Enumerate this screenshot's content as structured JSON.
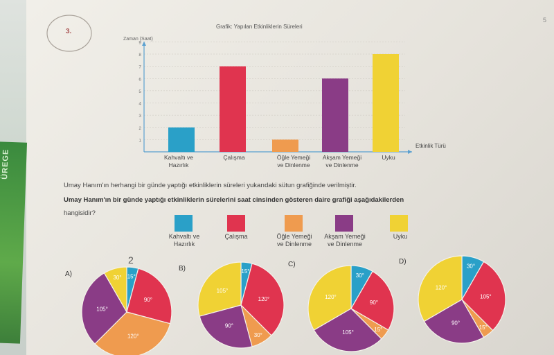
{
  "question_number": "3.",
  "page_number": "5",
  "side_sticker_text": "ÜREGE",
  "bar_chart": {
    "title": "Grafik: Yapılan Etkinliklerin Süreleri",
    "y_axis_title": "Zaman (Saat)",
    "x_axis_title": "Etkinlik Türü",
    "y_ticks": [
      "1",
      "2",
      "3",
      "4",
      "5",
      "6",
      "7",
      "8",
      "9"
    ]
  },
  "categories": [
    {
      "label_line1": "Kahvaltı ve",
      "label_line2": "Hazırlık",
      "color": "#2aa0c8"
    },
    {
      "label_line1": "Çalışma",
      "label_line2": "",
      "color": "#e0344f"
    },
    {
      "label_line1": "Öğle Yemeği",
      "label_line2": "ve Dinlenme",
      "color": "#ef9b4f"
    },
    {
      "label_line1": "Akşam Yemeği",
      "label_line2": "ve Dinlenme",
      "color": "#8a3c86"
    },
    {
      "label_line1": "Uyku",
      "label_line2": "",
      "color": "#f0d234"
    }
  ],
  "question": {
    "line1": "Umay Hanım'ın herhangi bir günde yaptığı etkinliklerin süreleri yukarıdaki sütun grafiğinde verilmiştir.",
    "line2": "Umay Hanım'ın bir günde yaptığı etkinliklerin sürelerini saat cinsinden gösteren daire grafiği aşağıdakilerden",
    "line3": "hangisidir?"
  },
  "options": [
    {
      "letter": "A)",
      "annotation": "2",
      "slices": [
        {
          "cat": 0,
          "deg": 15,
          "label": "15°"
        },
        {
          "cat": 1,
          "deg": 90,
          "label": "90°"
        },
        {
          "cat": 2,
          "deg": 120,
          "label": "120°"
        },
        {
          "cat": 3,
          "deg": 105,
          "label": "105°"
        },
        {
          "cat": 4,
          "deg": 30,
          "label": "30°"
        }
      ]
    },
    {
      "letter": "B)",
      "slices": [
        {
          "cat": 0,
          "deg": 15,
          "label": "15°"
        },
        {
          "cat": 1,
          "deg": 120,
          "label": "120°"
        },
        {
          "cat": 2,
          "deg": 30,
          "label": "30°"
        },
        {
          "cat": 3,
          "deg": 90,
          "label": "90°"
        },
        {
          "cat": 4,
          "deg": 105,
          "label": "105°"
        }
      ]
    },
    {
      "letter": "C)",
      "slices": [
        {
          "cat": 0,
          "deg": 30,
          "label": "30°"
        },
        {
          "cat": 1,
          "deg": 90,
          "label": "90°"
        },
        {
          "cat": 2,
          "deg": 15,
          "label": "15°"
        },
        {
          "cat": 3,
          "deg": 105,
          "label": "105°"
        },
        {
          "cat": 4,
          "deg": 120,
          "label": "120°"
        }
      ]
    },
    {
      "letter": "D)",
      "slices": [
        {
          "cat": 0,
          "deg": 30,
          "label": "30°"
        },
        {
          "cat": 1,
          "deg": 105,
          "label": "105°"
        },
        {
          "cat": 2,
          "deg": 15,
          "label": "15°"
        },
        {
          "cat": 3,
          "deg": 90,
          "label": "90°"
        },
        {
          "cat": 4,
          "deg": 120,
          "label": "120°"
        }
      ]
    }
  ],
  "chart_data": {
    "type": "bar",
    "title": "Grafik: Yapılan Etkinliklerin Süreleri",
    "xlabel": "Etkinlik Türü",
    "ylabel": "Zaman (Saat)",
    "categories": [
      "Kahvaltı ve Hazırlık",
      "Çalışma",
      "Öğle Yemeği ve Dinlenme",
      "Akşam Yemeği ve Dinlenme",
      "Uyku"
    ],
    "values": [
      2,
      7,
      1,
      6,
      8
    ],
    "ylim": [
      0,
      9
    ],
    "grid": true
  }
}
